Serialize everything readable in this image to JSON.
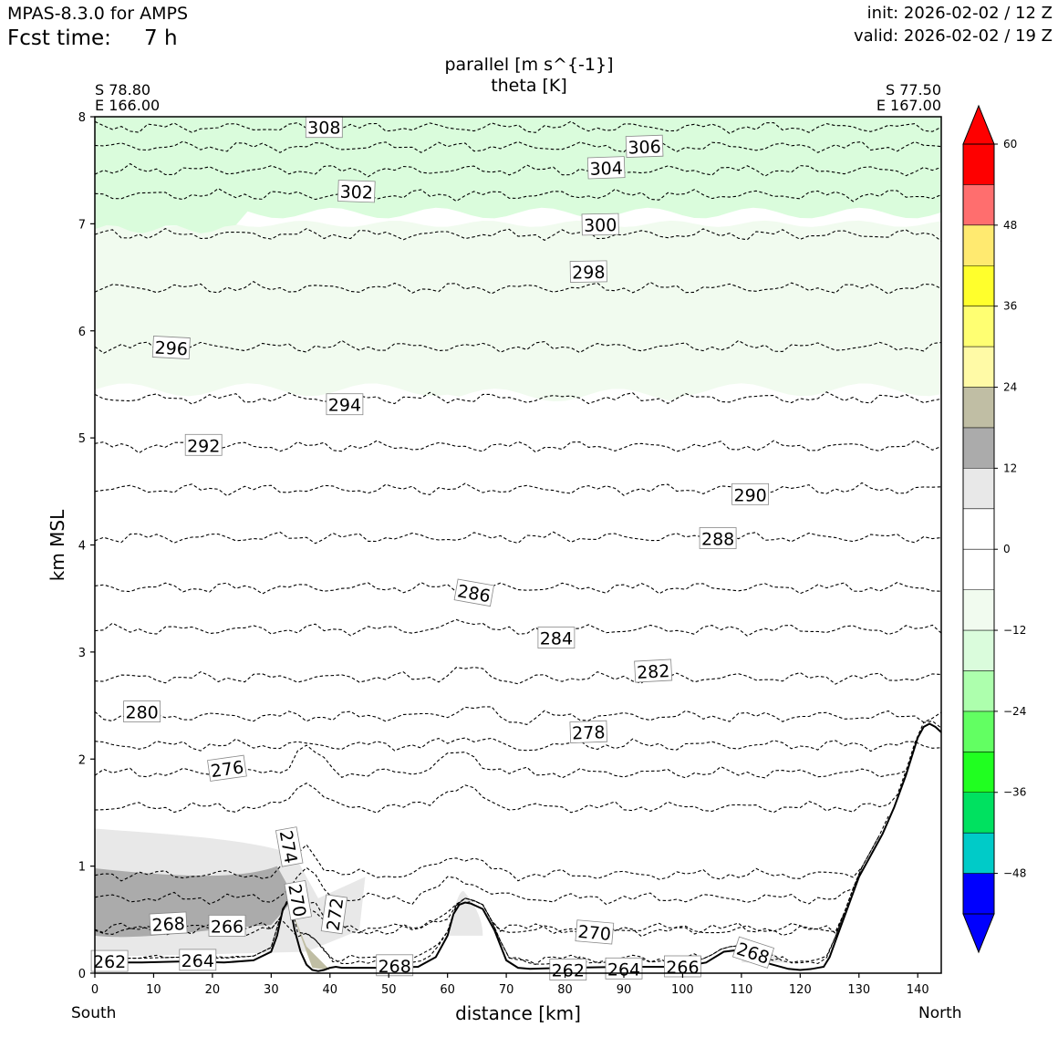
{
  "header": {
    "model": "MPAS-8.3.0 for AMPS",
    "fcst_label": "Fcst time:",
    "fcst_value": "7 h",
    "init": "init: 2026-02-02 / 12 Z",
    "valid": "valid: 2026-02-02 / 19 Z"
  },
  "chart_data": {
    "type": "contour",
    "title": "parallel [m s^{-1}]",
    "subtitle": "theta [K]",
    "xlabel": "distance [km]",
    "ylabel": "km MSL",
    "xlim": [
      0,
      144
    ],
    "ylim": [
      0,
      8
    ],
    "xticks": [
      "0",
      "10",
      "20",
      "30",
      "40",
      "50",
      "60",
      "70",
      "80",
      "90",
      "100",
      "110",
      "120",
      "130",
      "140"
    ],
    "yticks": [
      "0",
      "1",
      "2",
      "3",
      "4",
      "5",
      "6",
      "7",
      "8"
    ],
    "left_end": {
      "lat": "S 78.80",
      "lon": "E 166.00",
      "direction": "South"
    },
    "right_end": {
      "lat": "S 77.50",
      "lon": "E 167.00",
      "direction": "North"
    },
    "terrain": {
      "x": [
        0,
        8,
        15,
        22,
        27,
        30,
        31,
        32,
        33,
        34,
        35,
        36,
        37,
        38,
        39,
        40,
        41,
        42,
        45,
        50,
        55,
        58,
        60,
        61,
        62,
        63,
        64,
        66,
        68,
        70,
        72,
        74,
        80,
        90,
        100,
        104,
        107,
        110,
        114,
        118,
        120,
        122,
        124,
        125,
        126,
        128,
        130,
        132,
        134,
        136,
        138,
        140,
        141,
        142,
        143,
        144
      ],
      "y": [
        0.1,
        0.1,
        0.11,
        0.1,
        0.12,
        0.2,
        0.35,
        0.6,
        0.68,
        0.4,
        0.2,
        0.08,
        0.03,
        0.02,
        0.03,
        0.05,
        0.06,
        0.05,
        0.05,
        0.05,
        0.06,
        0.15,
        0.35,
        0.55,
        0.64,
        0.66,
        0.65,
        0.6,
        0.4,
        0.12,
        0.05,
        0.04,
        0.05,
        0.06,
        0.06,
        0.1,
        0.2,
        0.22,
        0.1,
        0.04,
        0.03,
        0.04,
        0.06,
        0.15,
        0.3,
        0.6,
        0.9,
        1.1,
        1.3,
        1.55,
        1.85,
        2.2,
        2.3,
        2.33,
        2.3,
        2.25
      ]
    },
    "theta_levels": [
      {
        "value": 262,
        "base": 0.1
      },
      {
        "value": 264,
        "base": 0.13
      },
      {
        "value": 266,
        "base": 0.4
      },
      {
        "value": 268,
        "base": 0.42
      },
      {
        "value": 270,
        "base": 0.7
      },
      {
        "value": 272,
        "base": 0.92
      },
      {
        "value": 274,
        "base": 1.55
      },
      {
        "value": 276,
        "base": 1.87
      },
      {
        "value": 278,
        "base": 2.13
      },
      {
        "value": 280,
        "base": 2.4
      },
      {
        "value": 282,
        "base": 2.76
      },
      {
        "value": 284,
        "base": 3.21
      },
      {
        "value": 286,
        "base": 3.6
      },
      {
        "value": 288,
        "base": 4.07
      },
      {
        "value": 290,
        "base": 4.52
      },
      {
        "value": 292,
        "base": 4.92
      },
      {
        "value": 294,
        "base": 5.37
      },
      {
        "value": 296,
        "base": 5.85
      },
      {
        "value": 298,
        "base": 6.4
      },
      {
        "value": 300,
        "base": 6.9
      },
      {
        "value": 302,
        "base": 7.27
      },
      {
        "value": 304,
        "base": 7.5
      },
      {
        "value": 306,
        "base": 7.72
      },
      {
        "value": 308,
        "base": 7.9
      }
    ],
    "theta_labels": [
      {
        "text": "308",
        "x": 39.0,
        "y": 7.9,
        "rot": 0
      },
      {
        "text": "306",
        "x": 93.5,
        "y": 7.72,
        "rot": -2
      },
      {
        "text": "304",
        "x": 87.0,
        "y": 7.52,
        "rot": -2
      },
      {
        "text": "302",
        "x": 44.5,
        "y": 7.3,
        "rot": 2
      },
      {
        "text": "300",
        "x": 86.0,
        "y": 6.99,
        "rot": -1
      },
      {
        "text": "298",
        "x": 84.0,
        "y": 6.55,
        "rot": -1
      },
      {
        "text": "296",
        "x": 13.0,
        "y": 5.84,
        "rot": 3
      },
      {
        "text": "294",
        "x": 42.5,
        "y": 5.31,
        "rot": 0
      },
      {
        "text": "292",
        "x": 18.5,
        "y": 4.93,
        "rot": 0
      },
      {
        "text": "290",
        "x": 111.5,
        "y": 4.47,
        "rot": 0
      },
      {
        "text": "288",
        "x": 106.0,
        "y": 4.06,
        "rot": 0
      },
      {
        "text": "286",
        "x": 64.5,
        "y": 3.55,
        "rot": 10
      },
      {
        "text": "284",
        "x": 78.5,
        "y": 3.13,
        "rot": 0
      },
      {
        "text": "282",
        "x": 95.0,
        "y": 2.82,
        "rot": -3
      },
      {
        "text": "280",
        "x": 8.0,
        "y": 2.44,
        "rot": 0
      },
      {
        "text": "278",
        "x": 84.0,
        "y": 2.25,
        "rot": -2
      },
      {
        "text": "276",
        "x": 22.5,
        "y": 1.91,
        "rot": -8
      },
      {
        "text": "274",
        "x": 33.0,
        "y": 1.18,
        "rot": 80
      },
      {
        "text": "272",
        "x": 40.8,
        "y": 0.55,
        "rot": -82
      },
      {
        "text": "270",
        "x": 34.5,
        "y": 0.68,
        "rot": 80
      },
      {
        "text": "270",
        "x": 85.0,
        "y": 0.38,
        "rot": 5
      },
      {
        "text": "268",
        "x": 12.5,
        "y": 0.46,
        "rot": -3
      },
      {
        "text": "266",
        "x": 22.5,
        "y": 0.44,
        "rot": 0
      },
      {
        "text": "268",
        "x": 51.0,
        "y": 0.07,
        "rot": 0
      },
      {
        "text": "268",
        "x": 112.0,
        "y": 0.19,
        "rot": 18
      },
      {
        "text": "262",
        "x": 2.5,
        "y": 0.11,
        "rot": 0
      },
      {
        "text": "264",
        "x": 17.5,
        "y": 0.12,
        "rot": 0
      },
      {
        "text": "262",
        "x": 80.5,
        "y": 0.03,
        "rot": 0
      },
      {
        "text": "264",
        "x": 90.0,
        "y": 0.04,
        "rot": 0
      },
      {
        "text": "266",
        "x": 100.0,
        "y": 0.06,
        "rot": 0
      }
    ],
    "wind_shading": [
      {
        "name": "weak-negative-band",
        "range": "-12 to -6",
        "color": "#f1fbef",
        "region": "5.4 to 7.0 km"
      },
      {
        "name": "moderate-negative-band",
        "range": "-18 to -12",
        "color": "#dafcdc",
        "region": "7.0 to 8.0 km"
      },
      {
        "name": "positive-low-level-jet",
        "range": "6 to 24",
        "color": "#ababab",
        "region": "southern boundary layer"
      }
    ],
    "colorbar": {
      "colors": [
        "#0000fe",
        "#00cbc8",
        "#00e160",
        "#20ff20",
        "#62ff62",
        "#adffad",
        "#dafcdc",
        "#f1fbef",
        "#ffffff",
        "#ffffff",
        "#e8e8e8",
        "#ababab",
        "#c0bea4",
        "#fffaa6",
        "#ffff72",
        "#ffff2c",
        "#ffea70",
        "#ff6e6e",
        "#fe0000"
      ],
      "tick_labels": [
        "60",
        "48",
        "36",
        "24",
        "12",
        "0",
        "−12",
        "−24",
        "−36",
        "−48"
      ],
      "tick_values": [
        60,
        48,
        36,
        24,
        12,
        0,
        -12,
        -24,
        -36,
        -48
      ],
      "vmin": -54,
      "vmax": 60,
      "extend": "both"
    }
  }
}
